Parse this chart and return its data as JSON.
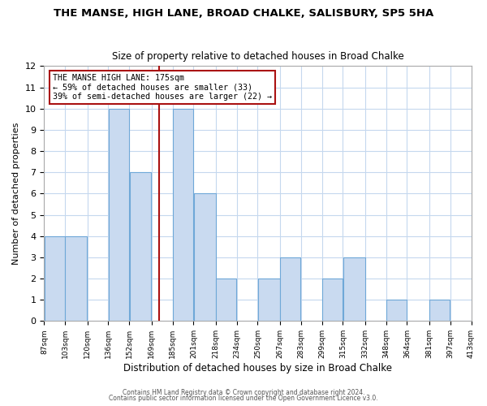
{
  "title": "THE MANSE, HIGH LANE, BROAD CHALKE, SALISBURY, SP5 5HA",
  "subtitle": "Size of property relative to detached houses in Broad Chalke",
  "xlabel": "Distribution of detached houses by size in Broad Chalke",
  "ylabel": "Number of detached properties",
  "bin_edges": [
    87,
    103,
    120,
    136,
    152,
    169,
    185,
    201,
    218,
    234,
    250,
    267,
    283,
    299,
    315,
    332,
    348,
    364,
    381,
    397,
    413
  ],
  "counts": [
    4,
    4,
    0,
    10,
    7,
    0,
    10,
    6,
    2,
    0,
    2,
    3,
    0,
    2,
    3,
    0,
    1,
    0,
    1,
    0
  ],
  "property_size": 175,
  "bar_facecolor": "#c9daf0",
  "bar_edgecolor": "#6fa8d8",
  "vline_color": "#aa1111",
  "grid_color": "#c5d8ee",
  "background_color": "#ffffff",
  "annotation_box_edgecolor": "#aa1111",
  "annotation_line1": "THE MANSE HIGH LANE: 175sqm",
  "annotation_line2": "← 59% of detached houses are smaller (33)",
  "annotation_line3": "39% of semi-detached houses are larger (22) →",
  "ylim": [
    0,
    12
  ],
  "yticks": [
    0,
    1,
    2,
    3,
    4,
    5,
    6,
    7,
    8,
    9,
    10,
    11,
    12
  ],
  "footer1": "Contains HM Land Registry data © Crown copyright and database right 2024.",
  "footer2": "Contains public sector information licensed under the Open Government Licence v3.0."
}
